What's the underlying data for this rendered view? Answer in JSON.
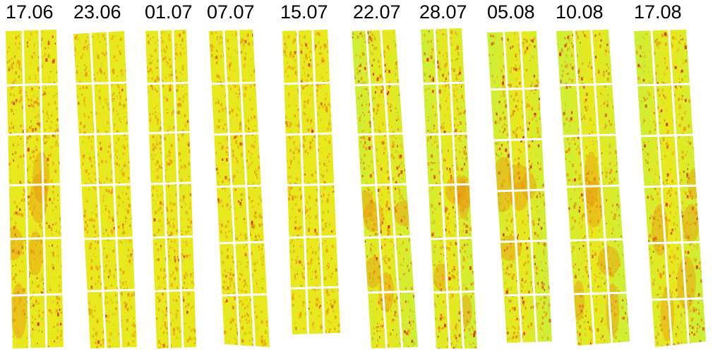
{
  "panels": [
    {
      "date": "17.06"
    },
    {
      "date": "23.06"
    },
    {
      "date": "01.07"
    },
    {
      "date": "07.07"
    },
    {
      "date": "15.07"
    },
    {
      "date": "22.07"
    },
    {
      "date": "28.07"
    },
    {
      "date": "05.08"
    },
    {
      "date": "10.08"
    },
    {
      "date": "17.08"
    }
  ],
  "colors": {
    "yellow": "#e8e81e",
    "lime": "#c8f03c",
    "orange": "#e89614",
    "red": "#d22814",
    "gap": "#ffffff"
  }
}
